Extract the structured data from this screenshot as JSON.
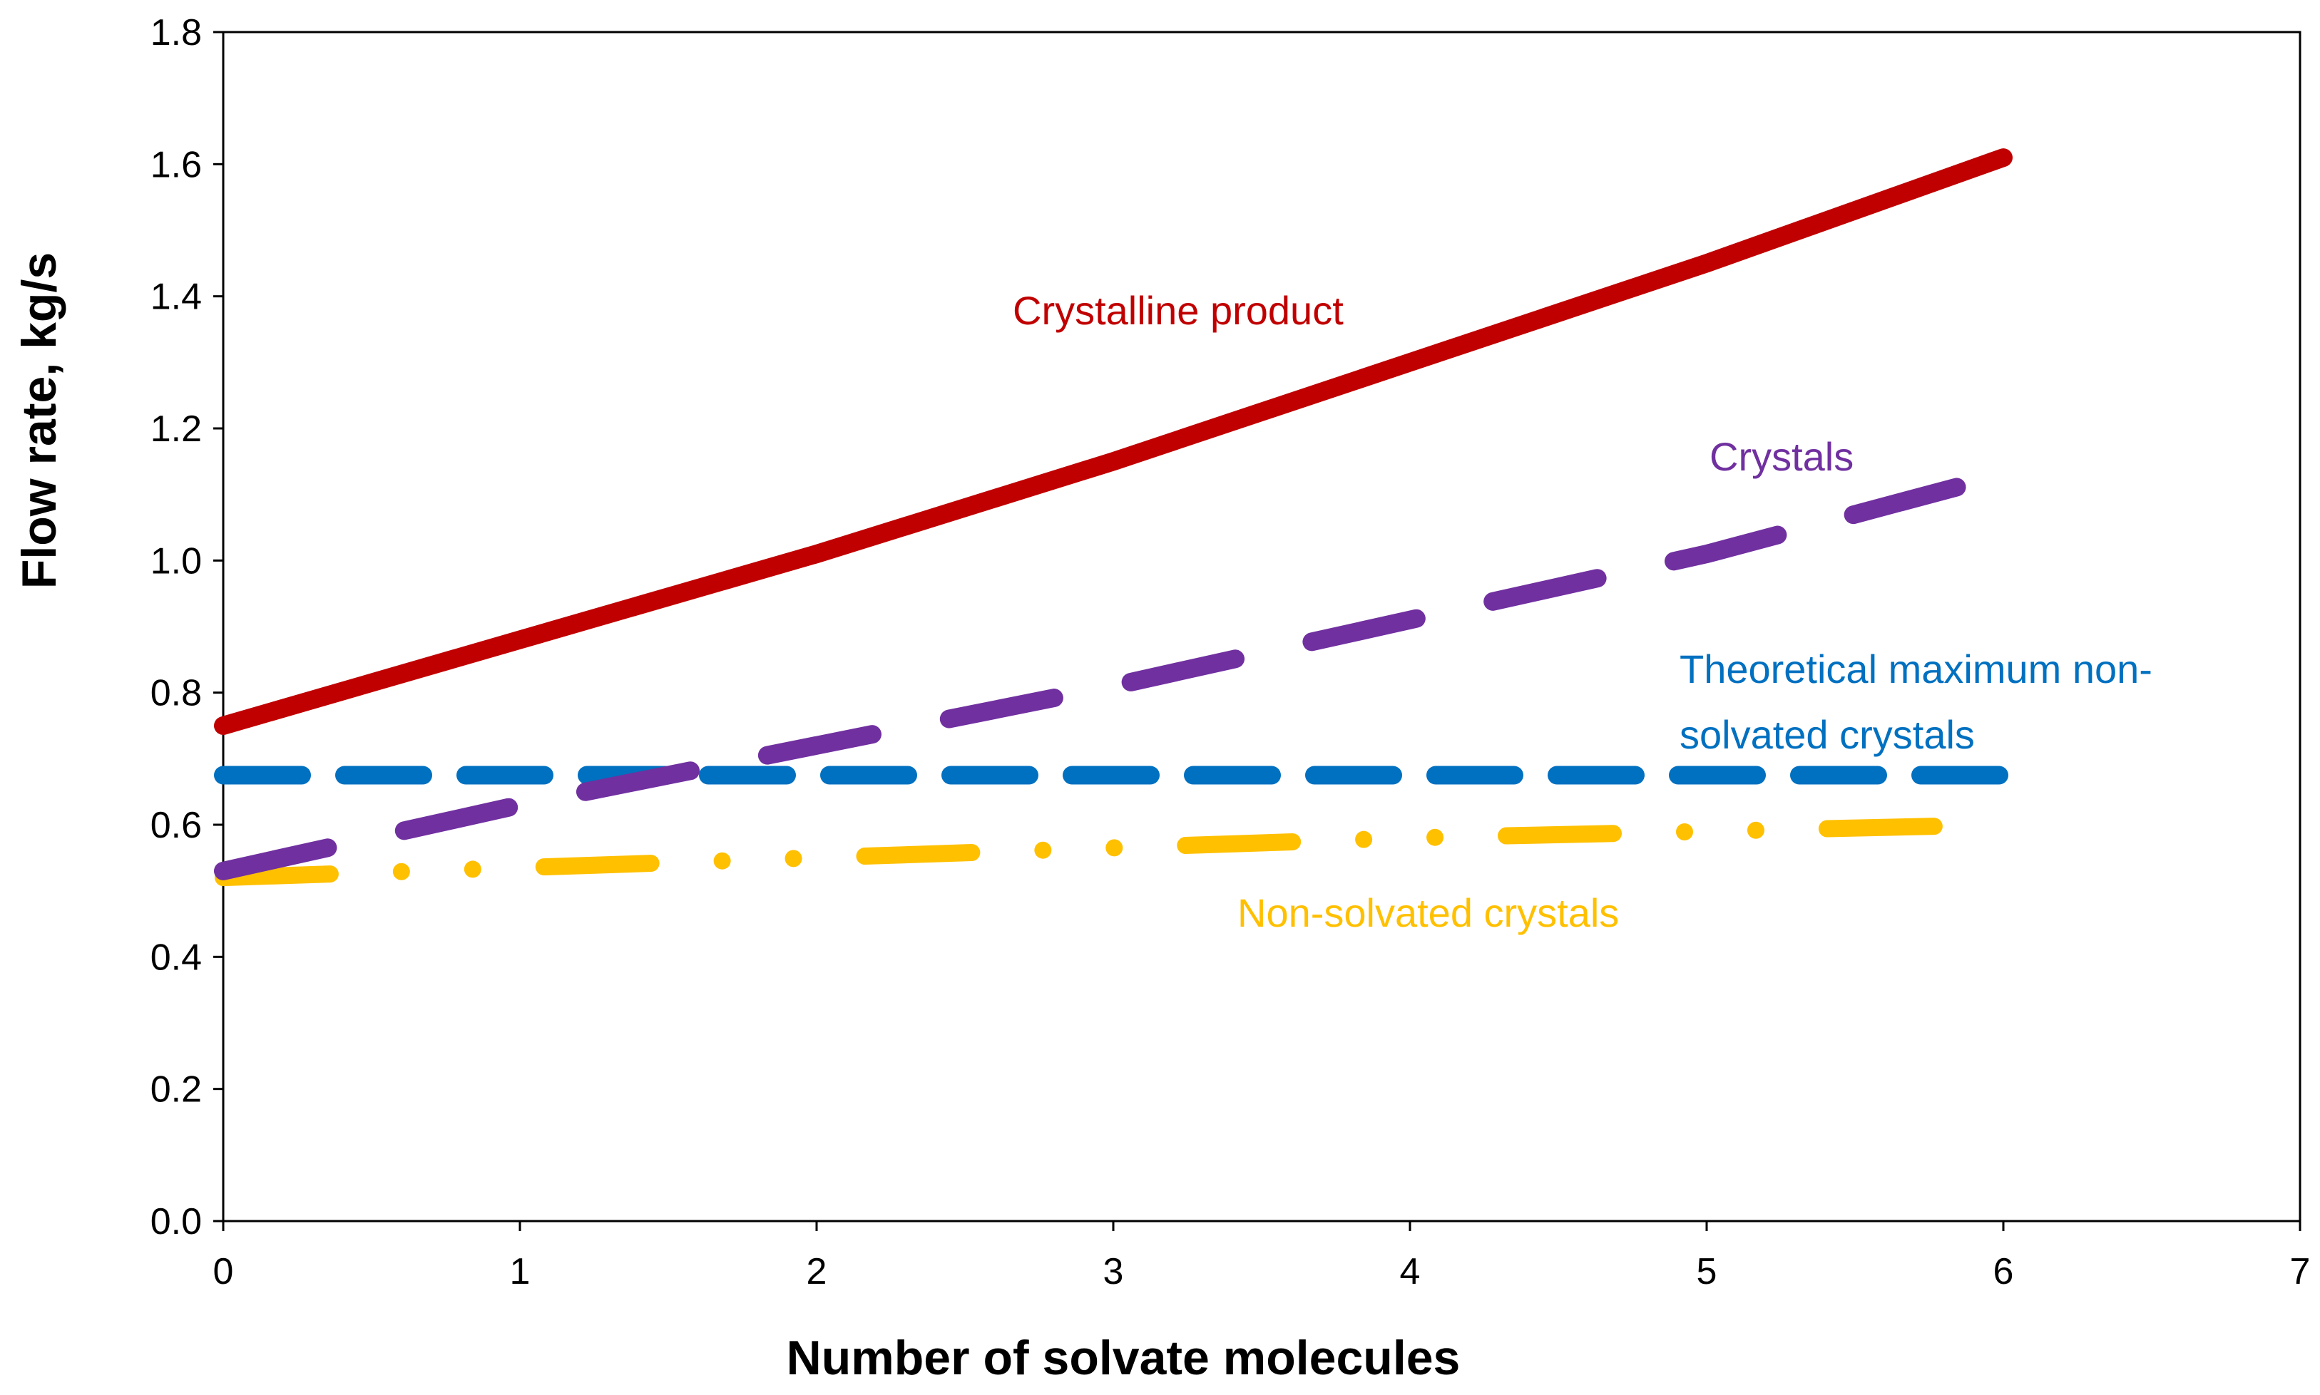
{
  "chart_data": {
    "type": "line",
    "title": "",
    "xlabel": "Number of solvate molecules",
    "ylabel": "Flow rate, kg/s",
    "xlim": [
      0,
      7
    ],
    "ylim": [
      0,
      1.8
    ],
    "x_ticks": [
      "0",
      "1",
      "2",
      "3",
      "4",
      "5",
      "6",
      "7"
    ],
    "y_ticks": [
      "0.0",
      "0.2",
      "0.4",
      "0.6",
      "0.8",
      "1.0",
      "1.2",
      "1.4",
      "1.6",
      "1.8"
    ],
    "grid": false,
    "series": [
      {
        "name": "Crystalline product",
        "style": "solid",
        "color": "#C00000",
        "x": [
          0,
          1,
          2,
          3,
          4,
          5,
          6
        ],
        "y": [
          0.75,
          0.88,
          1.01,
          1.15,
          1.3,
          1.45,
          1.61
        ]
      },
      {
        "name": "Crystals",
        "style": "long-dash",
        "color": "#7030A0",
        "x": [
          0,
          1,
          2,
          3,
          4,
          5,
          6
        ],
        "y": [
          0.53,
          0.63,
          0.72,
          0.81,
          0.91,
          1.01,
          1.13
        ]
      },
      {
        "name": "Theoretical maximum non-solvated crystals",
        "style": "dash",
        "color": "#0070C0",
        "x": [
          0,
          6
        ],
        "y": [
          0.675,
          0.675
        ]
      },
      {
        "name": "Non-solvated crystals",
        "style": "dash-dot",
        "color": "#FFC000",
        "x": [
          0,
          1,
          2,
          3,
          4,
          5,
          6
        ],
        "y": [
          0.52,
          0.535,
          0.55,
          0.565,
          0.58,
          0.59,
          0.6
        ]
      }
    ],
    "annotations": [
      {
        "text": "Crystalline product",
        "color": "#C00000"
      },
      {
        "text": "Crystals",
        "color": "#7030A0"
      },
      {
        "text_line1": "Theoretical maximum non-",
        "text_line2": "solvated crystals",
        "color": "#0070C0"
      },
      {
        "text": "Non-solvated crystals",
        "color": "#FFC000"
      }
    ]
  }
}
